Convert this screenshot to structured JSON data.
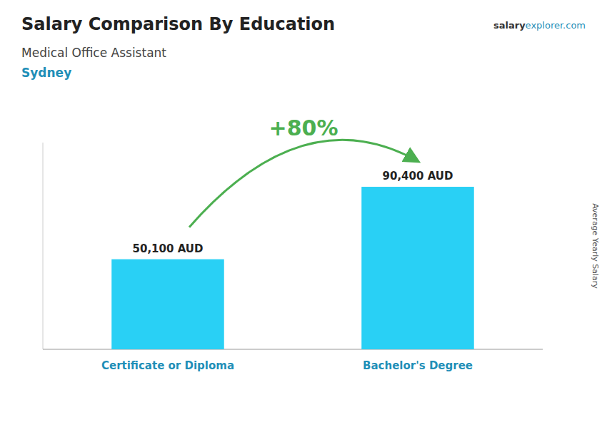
{
  "chart_data": {
    "type": "bar",
    "title": "Salary Comparison By Education",
    "subtitle": "Medical Office Assistant",
    "location": "Sydney",
    "source": [
      "salary",
      "explorer.com"
    ],
    "ylabel": "Average Yearly Salary",
    "categories": [
      "Certificate or Diploma",
      "Bachelor's Degree"
    ],
    "values": [
      50100,
      90400
    ],
    "value_labels": [
      "50,100 AUD",
      "90,400 AUD"
    ],
    "data_labels": true,
    "annotations": [
      "+80%"
    ],
    "color": "#29D0F5",
    "ylim": [
      0,
      115000
    ],
    "tick_labels": false,
    "grid": false
  }
}
